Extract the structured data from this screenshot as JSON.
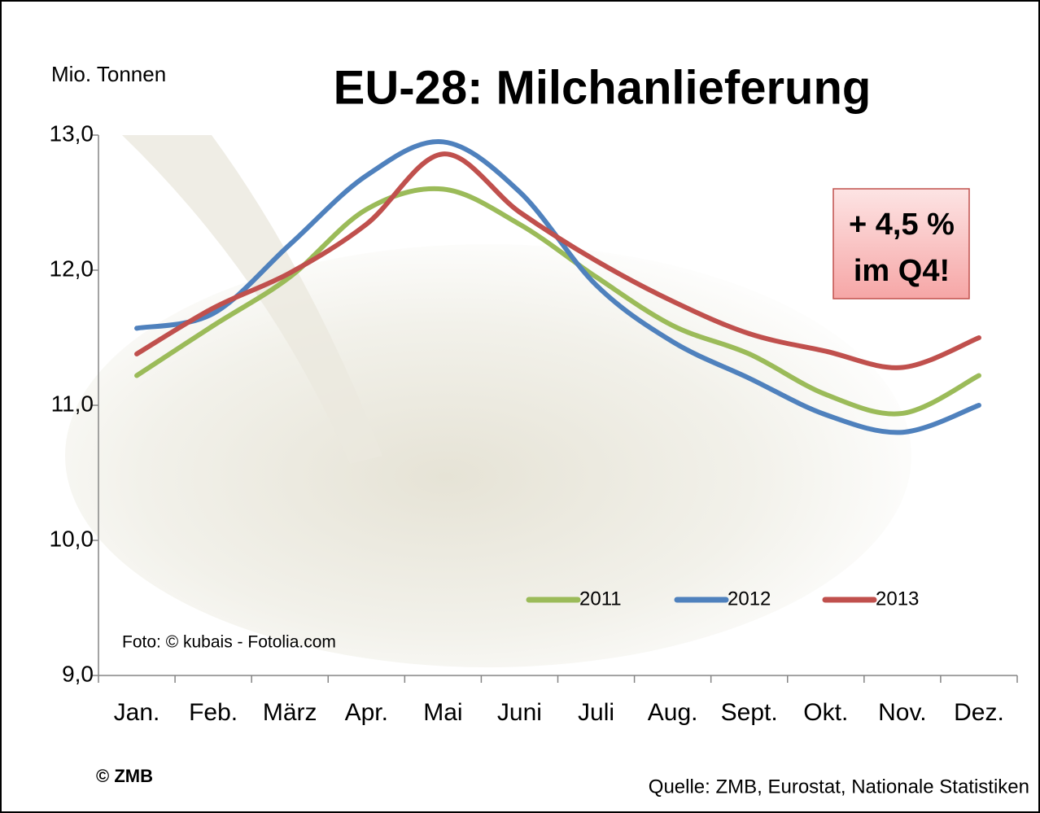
{
  "chart_data": {
    "type": "line",
    "title": "EU-28: Milchanlieferung",
    "ylabel": "Mio. Tonnen",
    "categories": [
      "Jan.",
      "Feb.",
      "März",
      "Apr.",
      "Mai",
      "Juni",
      "Juli",
      "Aug.",
      "Sept.",
      "Okt.",
      "Nov.",
      "Dez."
    ],
    "series": [
      {
        "name": "2011",
        "color": "#9bbb59",
        "values": [
          11.22,
          11.59,
          11.95,
          12.45,
          12.6,
          12.34,
          11.95,
          11.59,
          11.38,
          11.08,
          10.94,
          11.22
        ]
      },
      {
        "name": "2012",
        "color": "#4f81bd",
        "values": [
          11.57,
          11.68,
          12.19,
          12.7,
          12.95,
          12.58,
          11.89,
          11.47,
          11.2,
          10.93,
          10.8,
          11.0
        ]
      },
      {
        "name": "2013",
        "color": "#c0504d",
        "values": [
          11.38,
          11.72,
          11.98,
          12.34,
          12.86,
          12.43,
          12.07,
          11.77,
          11.53,
          11.4,
          11.28,
          11.5
        ]
      }
    ],
    "ylim": [
      9,
      13
    ],
    "yticks": [
      {
        "value": 9,
        "label": "9,0"
      },
      {
        "value": 10,
        "label": "10,0"
      },
      {
        "value": 11,
        "label": "11,0"
      },
      {
        "value": 12,
        "label": "12,0"
      },
      {
        "value": 13,
        "label": "13,0"
      }
    ],
    "legend": "lower right",
    "smooth": true,
    "annotation": [
      "+ 4,5 %",
      "im Q4!"
    ],
    "photo_credit": "Foto: © kubais - Fotolia.com",
    "copyright": "© ZMB",
    "source": "Quelle: ZMB, Eurostat,  Nationale Statistiken"
  }
}
